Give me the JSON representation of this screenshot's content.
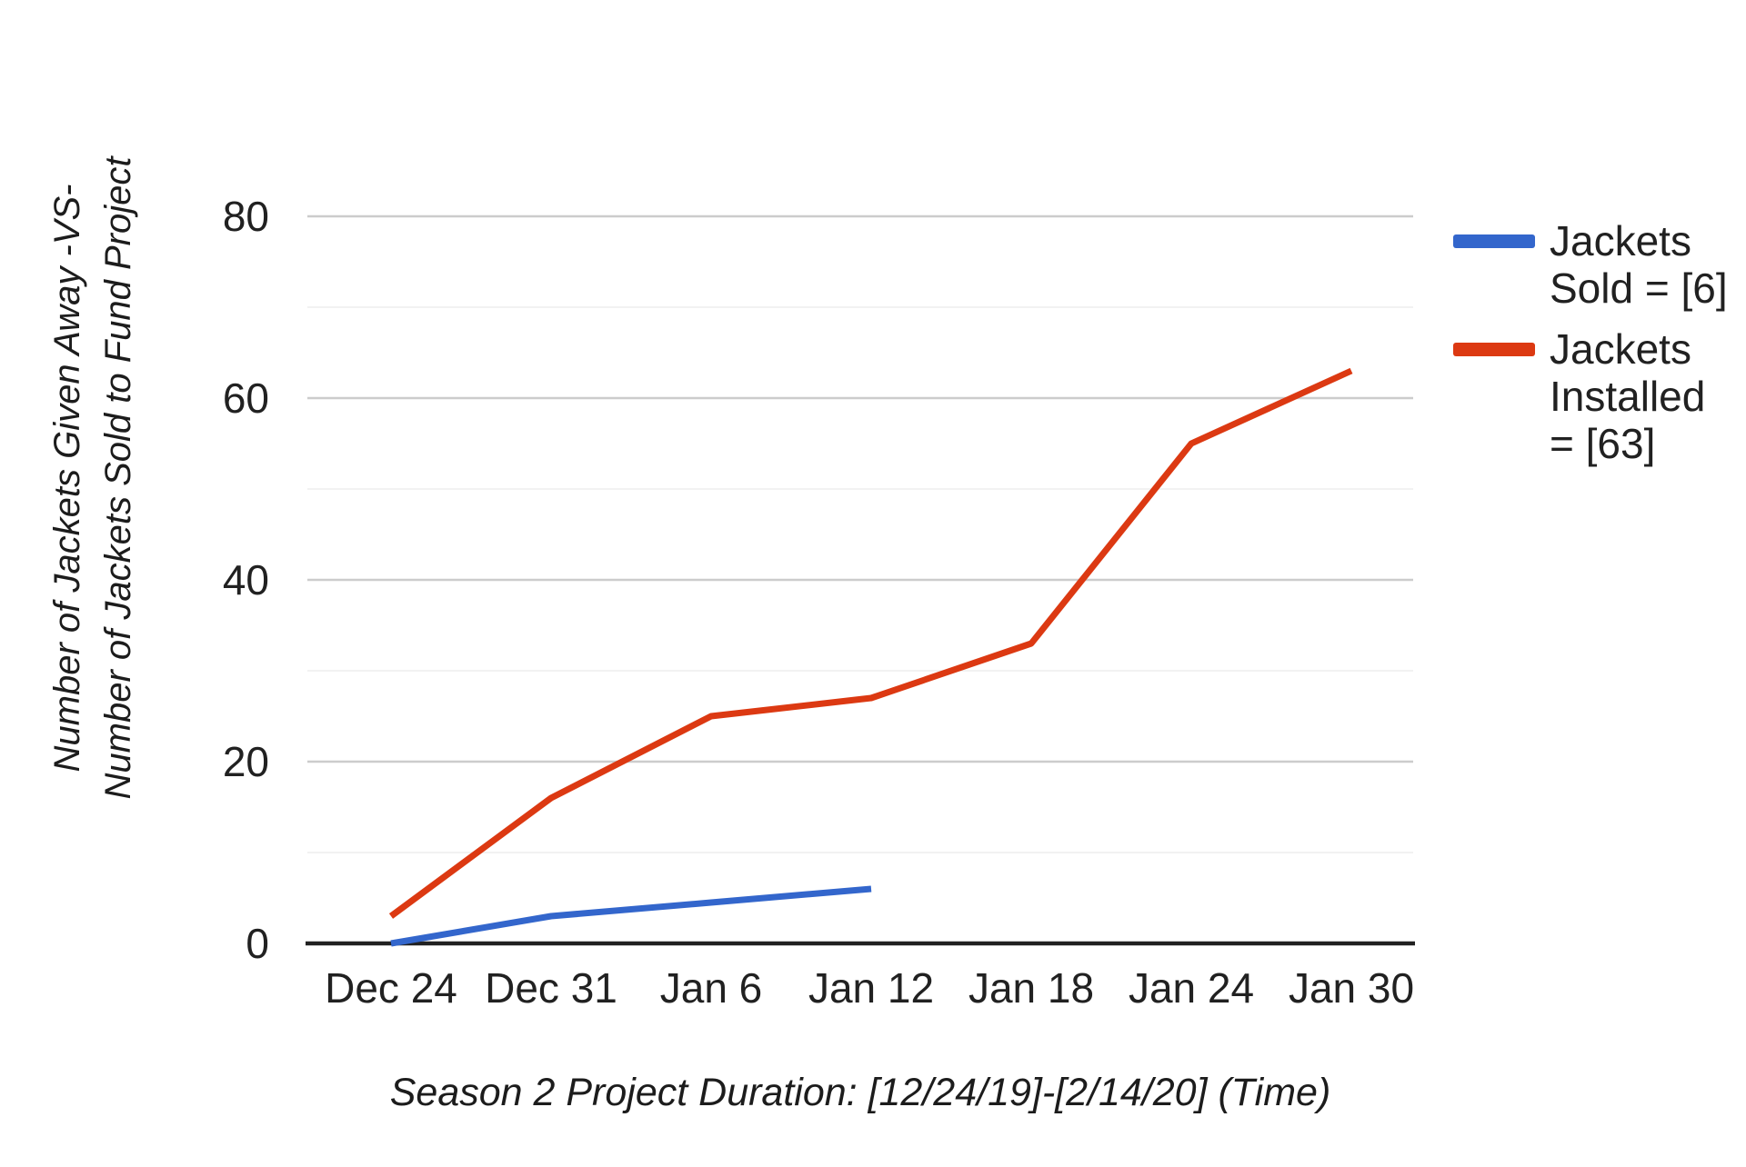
{
  "chart_data": {
    "type": "line",
    "categories": [
      "Dec 24",
      "Dec 31",
      "Jan 6",
      "Jan 12",
      "Jan 18",
      "Jan 24",
      "Jan 30"
    ],
    "series": [
      {
        "name": "Jackets Sold = [6]",
        "legend_lines": [
          "Jackets",
          "Sold = [6]"
        ],
        "color": "#3366cc",
        "values": [
          0,
          3,
          4.5,
          6,
          null,
          null,
          null
        ]
      },
      {
        "name": "Jackets Installed = [63]",
        "legend_lines": [
          "Jackets",
          "Installed",
          "= [63]"
        ],
        "color": "#dc3912",
        "values": [
          3,
          16,
          25,
          27,
          33,
          55,
          63
        ]
      }
    ],
    "xlabel": "Season 2 Project Duration: [12/24/19]-[2/14/20] (Time)",
    "ylabel": "Number of Jackets Given Away -VS- Number of Jackets Sold to Fund Project",
    "ylabel_lines": [
      "Number of Jackets Given Away -VS-",
      "Number of Jackets Sold to Fund Project"
    ],
    "yticks": [
      0,
      20,
      40,
      60,
      80
    ],
    "minor_grid_values": [
      10,
      30,
      50,
      70
    ],
    "ylim": [
      0,
      80
    ],
    "grid": "on",
    "legend_position": "right",
    "style": {
      "background": "#ffffff",
      "major_grid_color": "#cccccc",
      "minor_grid_color": "#ededed",
      "axis_color": "#212121",
      "tick_label_color": "#212121",
      "title_color": "#1c1c1c"
    }
  }
}
